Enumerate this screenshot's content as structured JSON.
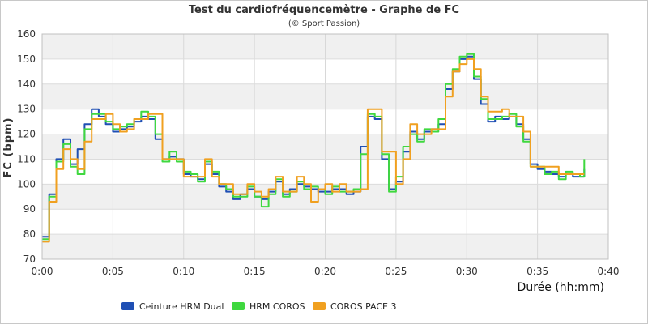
{
  "chart_data": {
    "type": "line",
    "title": "Test du cardiofréquencemètre - Graphe de FC",
    "subtitle": "(© Sport Passion)",
    "xlabel": "Durée (hh:mm)",
    "ylabel": "FC (bpm)",
    "xlim": [
      0,
      40
    ],
    "ylim": [
      70,
      160
    ],
    "x_ticks": [
      0,
      5,
      10,
      15,
      20,
      25,
      30,
      35,
      40
    ],
    "x_tick_labels": [
      "0:00",
      "0:05",
      "0:10",
      "0:15",
      "0:20",
      "0:25",
      "0:30",
      "0:35",
      "0:40"
    ],
    "y_ticks": [
      70,
      80,
      90,
      100,
      110,
      120,
      130,
      140,
      150,
      160
    ],
    "y_tick_labels": [
      "70",
      "80",
      "90",
      "100",
      "110",
      "120",
      "130",
      "140",
      "150",
      "160"
    ],
    "grid": true,
    "legend_position": "bottom",
    "series": [
      {
        "name": "Ceinture HRM Dual",
        "color": "#1f4fb4",
        "x": [
          0,
          0.5,
          1,
          1.5,
          2,
          2.5,
          3,
          3.5,
          4,
          4.5,
          5,
          5.5,
          6,
          6.5,
          7,
          7.5,
          8,
          8.5,
          9,
          9.5,
          10,
          10.5,
          11,
          11.5,
          12,
          12.5,
          13,
          13.5,
          14,
          14.5,
          15,
          15.5,
          16,
          16.5,
          17,
          17.5,
          18,
          18.5,
          19,
          19.5,
          20,
          20.5,
          21,
          21.5,
          22,
          22.5,
          23,
          23.5,
          24,
          24.5,
          25,
          25.5,
          26,
          26.5,
          27,
          27.5,
          28,
          28.5,
          29,
          29.5,
          30,
          30.5,
          31,
          31.5,
          32,
          32.5,
          33,
          33.5,
          34,
          34.5,
          35,
          35.5,
          36,
          36.5,
          37,
          37.5,
          38,
          38.3
        ],
        "y": [
          79,
          96,
          110,
          118,
          108,
          114,
          124,
          130,
          127,
          124,
          121,
          122,
          123,
          125,
          127,
          126,
          118,
          110,
          111,
          110,
          104,
          103,
          102,
          108,
          104,
          99,
          97,
          94,
          96,
          98,
          95,
          94,
          97,
          101,
          96,
          98,
          100,
          99,
          98,
          97,
          97,
          98,
          98,
          96,
          97,
          115,
          127,
          126,
          110,
          98,
          101,
          113,
          121,
          118,
          121,
          122,
          124,
          138,
          145,
          150,
          151,
          142,
          132,
          125,
          127,
          126,
          127,
          124,
          118,
          108,
          106,
          105,
          104,
          103,
          104,
          103,
          103,
          106
        ]
      },
      {
        "name": "HRM COROS",
        "color": "#3fd83f",
        "x": [
          0,
          0.5,
          1,
          1.5,
          2,
          2.5,
          3,
          3.5,
          4,
          4.5,
          5,
          5.5,
          6,
          6.5,
          7,
          7.5,
          8,
          8.5,
          9,
          9.5,
          10,
          10.5,
          11,
          11.5,
          12,
          12.5,
          13,
          13.5,
          14,
          14.5,
          15,
          15.5,
          16,
          16.5,
          17,
          17.5,
          18,
          18.5,
          19,
          19.5,
          20,
          20.5,
          21,
          21.5,
          22,
          22.5,
          23,
          23.5,
          24,
          24.5,
          25,
          25.5,
          26,
          26.5,
          27,
          27.5,
          28,
          28.5,
          29,
          29.5,
          30,
          30.5,
          31,
          31.5,
          32,
          32.5,
          33,
          33.5,
          34,
          34.5,
          35,
          35.5,
          36,
          36.5,
          37,
          37.5,
          38,
          38.3
        ],
        "y": [
          78,
          95,
          109,
          116,
          107,
          104,
          122,
          128,
          128,
          125,
          122,
          123,
          124,
          126,
          129,
          127,
          120,
          109,
          113,
          109,
          105,
          104,
          101,
          109,
          105,
          100,
          98,
          95,
          95,
          99,
          95,
          91,
          96,
          102,
          95,
          97,
          101,
          98,
          99,
          98,
          96,
          99,
          97,
          97,
          98,
          112,
          128,
          127,
          112,
          97,
          103,
          115,
          120,
          117,
          122,
          121,
          126,
          140,
          146,
          151,
          152,
          143,
          134,
          126,
          126,
          127,
          128,
          123,
          117,
          107,
          107,
          104,
          105,
          102,
          105,
          104,
          103,
          110
        ]
      },
      {
        "name": "COROS PACE 3",
        "color": "#f0a020",
        "x": [
          0,
          0.5,
          1,
          1.5,
          2,
          2.5,
          3,
          3.5,
          4,
          4.5,
          5,
          5.5,
          6,
          6.5,
          7,
          7.5,
          8,
          8.5,
          9,
          9.5,
          10,
          10.5,
          11,
          11.5,
          12,
          12.5,
          13,
          13.5,
          14,
          14.5,
          15,
          15.5,
          16,
          16.5,
          17,
          17.5,
          18,
          18.5,
          19,
          19.5,
          20,
          20.5,
          21,
          21.5,
          22,
          22.5,
          23,
          23.5,
          24,
          24.5,
          25,
          25.5,
          26,
          26.5,
          27,
          27.5,
          28,
          28.5,
          29,
          29.5,
          30,
          30.5,
          31,
          31.5,
          32,
          32.5,
          33,
          33.5,
          34,
          34.5,
          35,
          35.5,
          36,
          36.5,
          37,
          37.5,
          38,
          38.3
        ],
        "y": [
          77,
          93,
          106,
          114,
          110,
          106,
          117,
          126,
          126,
          128,
          124,
          121,
          122,
          126,
          126,
          128,
          128,
          110,
          110,
          110,
          103,
          103,
          103,
          110,
          103,
          100,
          100,
          96,
          96,
          100,
          97,
          95,
          98,
          103,
          97,
          97,
          103,
          100,
          93,
          98,
          100,
          97,
          100,
          97,
          97,
          98,
          130,
          130,
          113,
          113,
          100,
          110,
          124,
          120,
          120,
          122,
          122,
          135,
          145,
          148,
          150,
          146,
          135,
          129,
          129,
          130,
          127,
          127,
          121,
          107,
          107,
          107,
          107,
          104,
          104,
          104,
          104,
          104
        ]
      }
    ]
  }
}
